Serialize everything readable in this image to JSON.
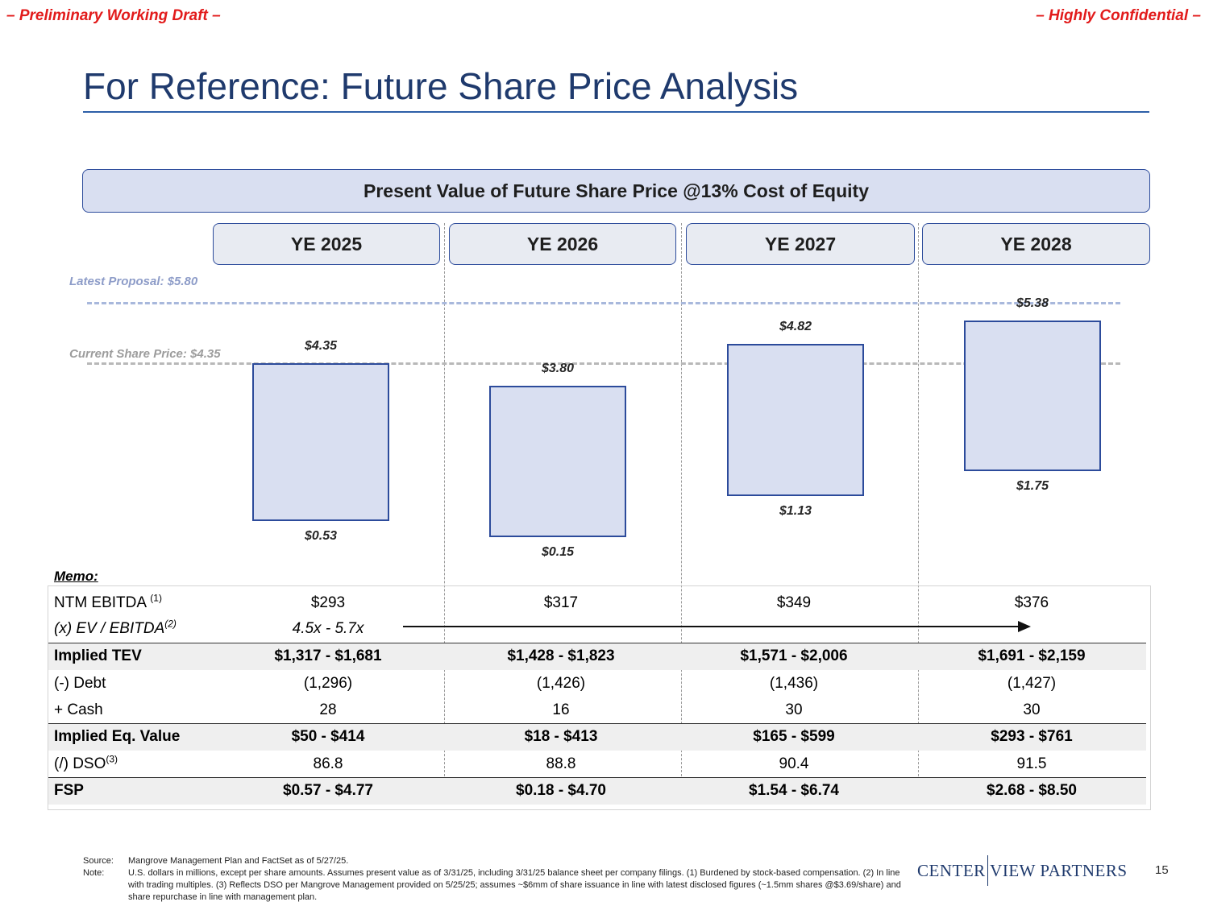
{
  "header": {
    "left_tag": "– Preliminary Working Draft –",
    "right_tag": "– Highly Confidential –",
    "title": "For Reference: Future Share Price Analysis"
  },
  "banner": "Present Value of Future Share Price @13% Cost of Equity",
  "years": [
    "YE 2025",
    "YE 2026",
    "YE 2027",
    "YE 2028"
  ],
  "reference_lines": {
    "latest_proposal_label": "Latest Proposal:  $5.80",
    "latest_proposal_value": 5.8,
    "current_price_label": "Current Share Price: $4.35",
    "current_price_value": 4.35
  },
  "chart_data": {
    "type": "floating-bar",
    "title": "Present Value of Future Share Price @13% Cost of Equity",
    "categories": [
      "YE 2025",
      "YE 2026",
      "YE 2027",
      "YE 2028"
    ],
    "low": [
      0.53,
      0.15,
      1.13,
      1.75
    ],
    "high": [
      4.35,
      3.8,
      4.82,
      5.38
    ],
    "low_labels": [
      "$0.53",
      "$0.15",
      "$1.13",
      "$1.75"
    ],
    "high_labels": [
      "$4.35",
      "$3.80",
      "$4.82",
      "$5.38"
    ],
    "reference_lines": [
      {
        "name": "Latest Proposal",
        "value": 5.8
      },
      {
        "name": "Current Share Price",
        "value": 4.35
      }
    ]
  },
  "memo": {
    "title": "Memo:",
    "rows": [
      {
        "label": "NTM EBITDA",
        "sup": "(1)",
        "values": [
          "$293",
          "$317",
          "$349",
          "$376"
        ]
      },
      {
        "label": "(x) EV / EBITDA",
        "sup": "(2)",
        "values": [
          "4.5x - 5.7x"
        ]
      },
      {
        "label": "Implied TEV",
        "values": [
          "$1,317 - $1,681",
          "$1,428 - $1,823",
          "$1,571 - $2,006",
          "$1,691 - $2,159"
        ]
      },
      {
        "label": "(-) Debt",
        "values": [
          "(1,296)",
          "(1,426)",
          "(1,436)",
          "(1,427)"
        ]
      },
      {
        "label": "+ Cash",
        "values": [
          "28",
          "16",
          "30",
          "30"
        ]
      },
      {
        "label": "Implied Eq. Value",
        "values": [
          "$50 - $414",
          "$18 - $413",
          "$165 - $599",
          "$293 - $761"
        ]
      },
      {
        "label": "(/) DSO",
        "sup": "(3)",
        "values": [
          "86.8",
          "88.8",
          "90.4",
          "91.5"
        ]
      },
      {
        "label": "FSP",
        "values": [
          "$0.57 - $4.77",
          "$0.18 - $4.70",
          "$1.54 - $6.74",
          "$2.68 - $8.50"
        ]
      }
    ]
  },
  "footer": {
    "source_key": "Source:",
    "source_text": "Mangrove  Management  Plan  and  FactSet as of 5/27/25.",
    "note_key": "Note:",
    "note_text": "U.S. dollars in millions, except per share amounts. Assumes present value as of 3/31/25, including 3/31/25 balance sheet per company filings. (1) Burdened by stock-based compensation. (2) In line with trading multiples. (3) Reflects DSO per Mangrove Management provided on 5/25/25; assumes ~$6mm of share issuance in line with latest disclosed figures (~1.5mm shares @$3.69/share) and share repurchase in line with management plan.",
    "logo_left": "CENTER",
    "logo_right": "VIEW PARTNERS",
    "page_number": "15"
  }
}
